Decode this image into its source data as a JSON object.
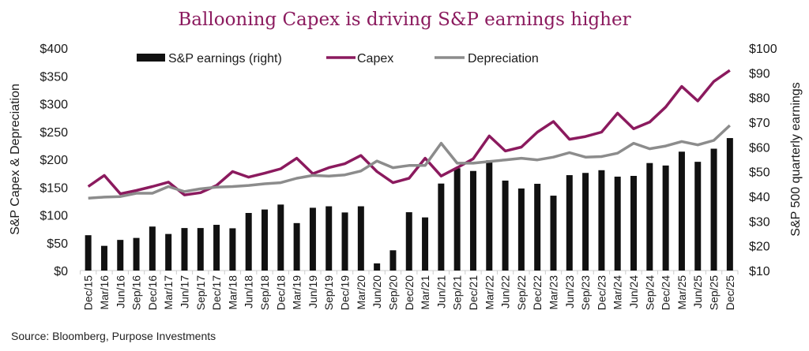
{
  "chart_data": {
    "type": "bar+line",
    "title": "Ballooning Capex is driving S&P earnings higher",
    "source": "Source: Bloomberg, Purpose Investments",
    "ylabel": "S&P Capex & Depreciation",
    "ylabel_right": "S&P 500 quarterly earnings",
    "ylim": [
      0,
      400
    ],
    "ylim_right": [
      10,
      100
    ],
    "yticks": [
      "$0",
      "$50",
      "$100",
      "$150",
      "$200",
      "$250",
      "$300",
      "$350",
      "$400"
    ],
    "yticks_right": [
      "$10",
      "$20",
      "$30",
      "$40",
      "$50",
      "$60",
      "$70",
      "$80",
      "$90",
      "$100"
    ],
    "legend_position": "top",
    "grid": false,
    "categories": [
      "Dec/15",
      "Mar/16",
      "Jun/16",
      "Sep/16",
      "Dec/16",
      "Mar/17",
      "Jun/17",
      "Sep/17",
      "Dec/17",
      "Mar/18",
      "Jun/18",
      "Sep/18",
      "Dec/18",
      "Mar/19",
      "Jun/19",
      "Sep/19",
      "Dec/19",
      "Mar/20",
      "Jun/20",
      "Sep/20",
      "Dec/20",
      "Mar/21",
      "Jun/21",
      "Sep/21",
      "Dec/21",
      "Mar/22",
      "Jun/22",
      "Sep/22",
      "Dec/22",
      "Mar/23",
      "Jun/23",
      "Sep/23",
      "Dec/23",
      "Mar/24",
      "Jun/24",
      "Sep/24",
      "Dec/24",
      "Mar/25",
      "Jun/25",
      "Sep/25",
      "Dec/25"
    ],
    "series": [
      {
        "name": "S&P earnings (right)",
        "type": "bar",
        "axis": "right",
        "color": "#111111",
        "values": [
          24.3,
          20.0,
          22.4,
          23.2,
          27.8,
          24.8,
          27.2,
          27.2,
          28.5,
          27.1,
          33.3,
          34.7,
          36.7,
          29.2,
          35.4,
          36.0,
          33.5,
          36.0,
          12.9,
          18.2,
          33.6,
          31.5,
          45.2,
          51.4,
          50.3,
          54.6,
          46.4,
          43.2,
          45.1,
          40.3,
          48.6,
          49.5,
          50.6,
          48.0,
          48.3,
          53.5,
          52.5,
          58.1,
          54.0,
          59.3,
          63.6
        ]
      },
      {
        "name": "Capex",
        "type": "line",
        "axis": "left",
        "color": "#8B1A5E",
        "values": [
          151,
          171,
          138,
          144,
          151,
          159,
          136,
          140,
          153,
          178,
          168,
          175,
          183,
          202,
          174,
          185,
          192,
          207,
          178,
          158,
          166,
          202,
          170,
          185,
          201,
          242,
          215,
          222,
          249,
          268,
          236,
          241,
          249,
          283,
          255,
          267,
          294,
          331,
          305,
          340,
          360
        ]
      },
      {
        "name": "Depreciation",
        "type": "line",
        "axis": "left",
        "color": "#8C8C8C",
        "values": [
          130,
          132,
          133,
          139,
          139,
          151,
          142,
          147,
          150,
          151,
          153,
          156,
          158,
          166,
          171,
          170,
          172,
          179,
          197,
          185,
          189,
          189,
          229,
          193,
          193,
          196,
          199,
          202,
          199,
          204,
          212,
          204,
          205,
          211,
          229,
          219,
          224,
          232,
          226,
          234,
          261
        ]
      }
    ]
  }
}
